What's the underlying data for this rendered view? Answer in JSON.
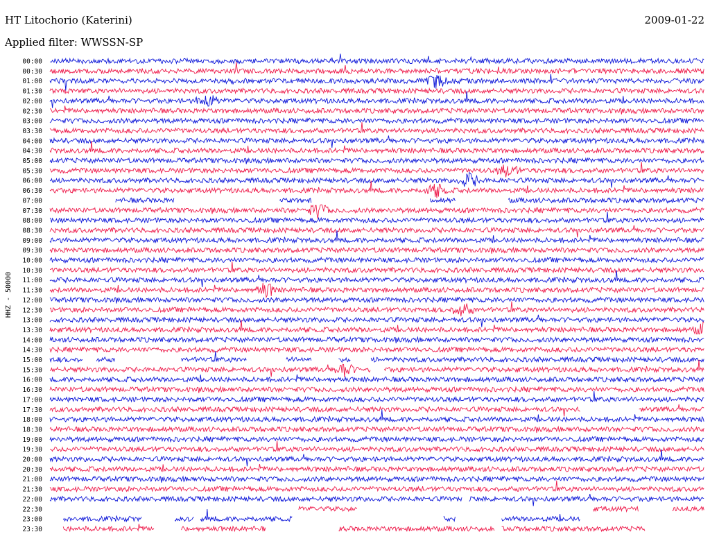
{
  "header": {
    "station": "HT Litochorio (Katerini)",
    "date": "2009-01-22",
    "filter": "Applied filter: WWSSN-SP"
  },
  "chart_data": {
    "type": "line",
    "title": "HT Litochorio (Katerini)",
    "ylabel": "HHZ - 50000",
    "colors": [
      "#0a14d8",
      "#ee1a4a"
    ],
    "rows": [
      "00:00",
      "00:30",
      "01:00",
      "01:30",
      "02:00",
      "02:30",
      "03:00",
      "03:30",
      "04:00",
      "04:30",
      "05:00",
      "05:30",
      "06:00",
      "06:30",
      "07:00",
      "07:30",
      "08:00",
      "08:30",
      "09:00",
      "09:30",
      "10:00",
      "10:30",
      "11:00",
      "11:30",
      "12:00",
      "12:30",
      "13:00",
      "13:30",
      "14:00",
      "14:30",
      "15:00",
      "15:30",
      "16:00",
      "16:30",
      "17:00",
      "17:30",
      "18:00",
      "18:30",
      "19:00",
      "19:30",
      "20:00",
      "20:30",
      "21:00",
      "21:30",
      "22:00",
      "22:30",
      "23:00",
      "23:30"
    ],
    "gaps": {
      "07:00": [
        [
          0,
          0.1
        ],
        [
          0.19,
          0.35
        ],
        [
          0.4,
          0.58
        ],
        [
          0.62,
          0.7
        ]
      ],
      "15:00": [
        [
          0.05,
          0.07
        ],
        [
          0.1,
          0.2
        ],
        [
          0.3,
          0.36
        ],
        [
          0.4,
          0.44
        ],
        [
          0.46,
          0.49
        ]
      ],
      "15:30": [
        [
          0.49,
          0.51
        ]
      ],
      "17:30": [
        [
          0.81,
          0.9
        ]
      ],
      "22:00": [
        [
          0.63,
          0.64
        ]
      ],
      "22:30": [
        [
          0.0,
          0.38
        ],
        [
          0.47,
          0.83
        ],
        [
          0.9,
          0.95
        ]
      ],
      "23:00": [
        [
          0.0,
          0.02
        ],
        [
          0.14,
          0.19
        ],
        [
          0.22,
          0.23
        ],
        [
          0.37,
          0.6
        ],
        [
          0.62,
          0.69
        ],
        [
          0.81,
          1.0
        ]
      ],
      "23:30": [
        [
          0.0,
          0.02
        ],
        [
          0.16,
          0.2
        ],
        [
          0.33,
          0.44
        ],
        [
          0.68,
          0.69
        ],
        [
          0.91,
          1.0
        ]
      ]
    },
    "events": [
      {
        "row": "01:00",
        "at": 0.59
      },
      {
        "row": "02:00",
        "at": 0.24
      },
      {
        "row": "06:00",
        "at": 0.64
      },
      {
        "row": "05:30",
        "at": 0.7
      },
      {
        "row": "06:30",
        "at": 0.59
      },
      {
        "row": "11:30",
        "at": 0.33
      },
      {
        "row": "12:30",
        "at": 0.63
      },
      {
        "row": "13:30",
        "at": 1.0
      },
      {
        "row": "07:30",
        "at": 0.41
      },
      {
        "row": "15:30",
        "at": 0.45
      }
    ]
  }
}
